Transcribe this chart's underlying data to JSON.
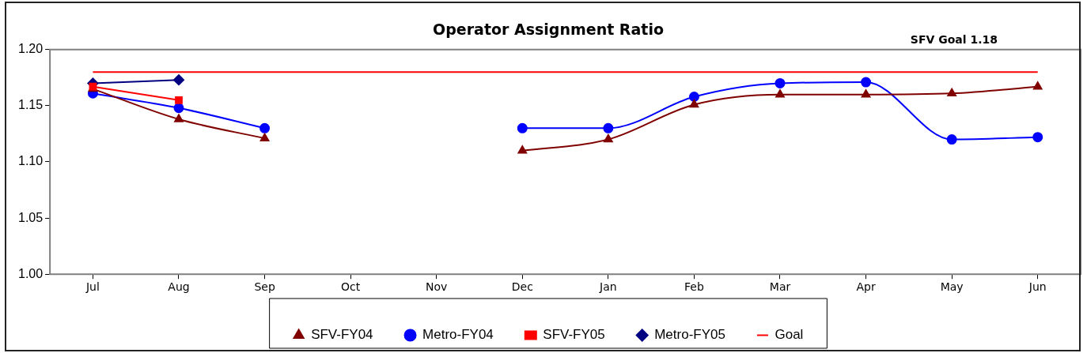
{
  "chart_data": {
    "type": "line",
    "title": "Operator Assignment Ratio",
    "annotations": [
      "SFV Goal 1.18"
    ],
    "categories": [
      "Jul",
      "Aug",
      "Sep",
      "Oct",
      "Nov",
      "Dec",
      "Jan",
      "Feb",
      "Mar",
      "Apr",
      "May",
      "Jun"
    ],
    "series": [
      {
        "name": "SFV-FY04",
        "color": "#800000",
        "marker": "triangle",
        "values": [
          1.165,
          1.138,
          1.121,
          null,
          null,
          1.11,
          1.12,
          1.151,
          1.16,
          1.16,
          1.161,
          1.167
        ]
      },
      {
        "name": "Metro-FY04",
        "color": "#0000ff",
        "marker": "circle",
        "values": [
          1.161,
          1.148,
          1.13,
          null,
          null,
          1.13,
          1.13,
          1.158,
          1.17,
          1.171,
          1.12,
          1.122
        ]
      },
      {
        "name": "SFV-FY05",
        "color": "#ff0000",
        "marker": "square",
        "values": [
          1.167,
          1.155,
          null,
          null,
          null,
          null,
          null,
          null,
          null,
          null,
          null,
          null
        ]
      },
      {
        "name": "Metro-FY05",
        "color": "#000080",
        "marker": "diamond",
        "values": [
          1.17,
          1.173,
          null,
          null,
          null,
          null,
          null,
          null,
          null,
          null,
          null,
          null
        ]
      },
      {
        "name": "Goal",
        "color": "#ff0000",
        "marker": "none",
        "values": [
          1.18,
          1.18,
          1.18,
          1.18,
          1.18,
          1.18,
          1.18,
          1.18,
          1.18,
          1.18,
          1.18,
          1.18
        ]
      }
    ],
    "ylim": [
      1.0,
      1.2
    ],
    "yticks": [
      {
        "value": 1.0,
        "label": "1.00"
      },
      {
        "value": 1.05,
        "label": "1.05"
      },
      {
        "value": 1.1,
        "label": "1.10"
      },
      {
        "value": 1.15,
        "label": "1.15"
      },
      {
        "value": 1.2,
        "label": "1.20"
      }
    ],
    "grid": false,
    "legend": "bottom",
    "line_style": "solid"
  }
}
